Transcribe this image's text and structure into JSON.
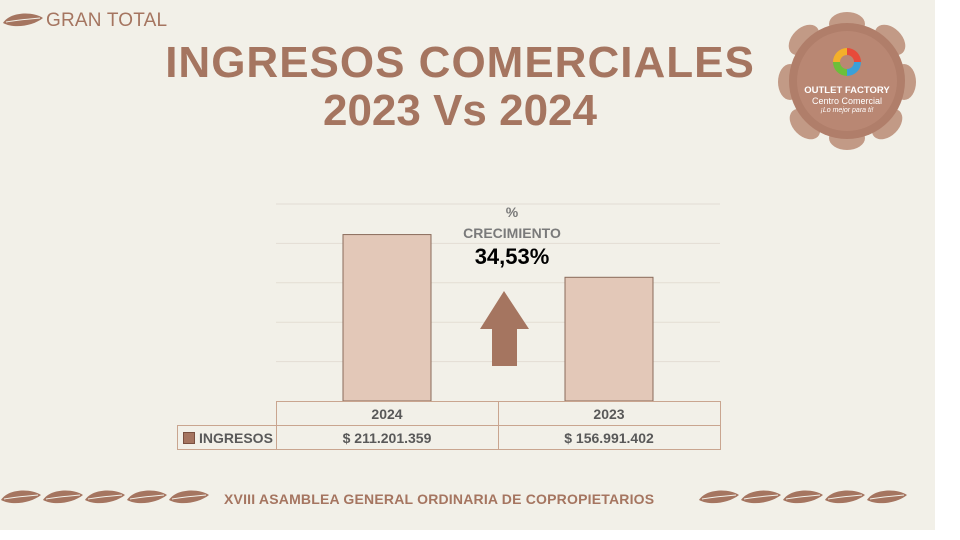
{
  "header": {
    "section_label": "GRAN TOTAL",
    "title_line1": "INGRESOS COMERCIALES",
    "title_line2": "2023 Vs 2024"
  },
  "logo": {
    "name": "OUTLET FACTORY",
    "subtitle": "Centro Comercial",
    "tagline": "¡Lo mejor para ti!"
  },
  "growth": {
    "label_line1": "%",
    "label_line2": "CRECIMIENTO",
    "value": "34,53%"
  },
  "chart_data": {
    "type": "bar",
    "categories": [
      "2024",
      "2023"
    ],
    "series": [
      {
        "name": "INGRESOS",
        "values": [
          211201359,
          156991402
        ]
      }
    ],
    "value_labels": [
      "$ 211.201.359",
      "$ 156.991.402"
    ],
    "ylim": [
      0,
      250000000
    ],
    "grid": true,
    "legend": "data-table"
  },
  "table": {
    "row_label": "INGRESOS"
  },
  "footer": {
    "text": "XVIII ASAMBLEA GENERAL ORDINARIA DE COPROPIETARIOS"
  },
  "colors": {
    "accent": "#a57560",
    "bar_fill": "#e3c8b8",
    "bar_stroke": "#8a6a5a",
    "arrow": "#a57560",
    "background": "#f2f0e8"
  }
}
